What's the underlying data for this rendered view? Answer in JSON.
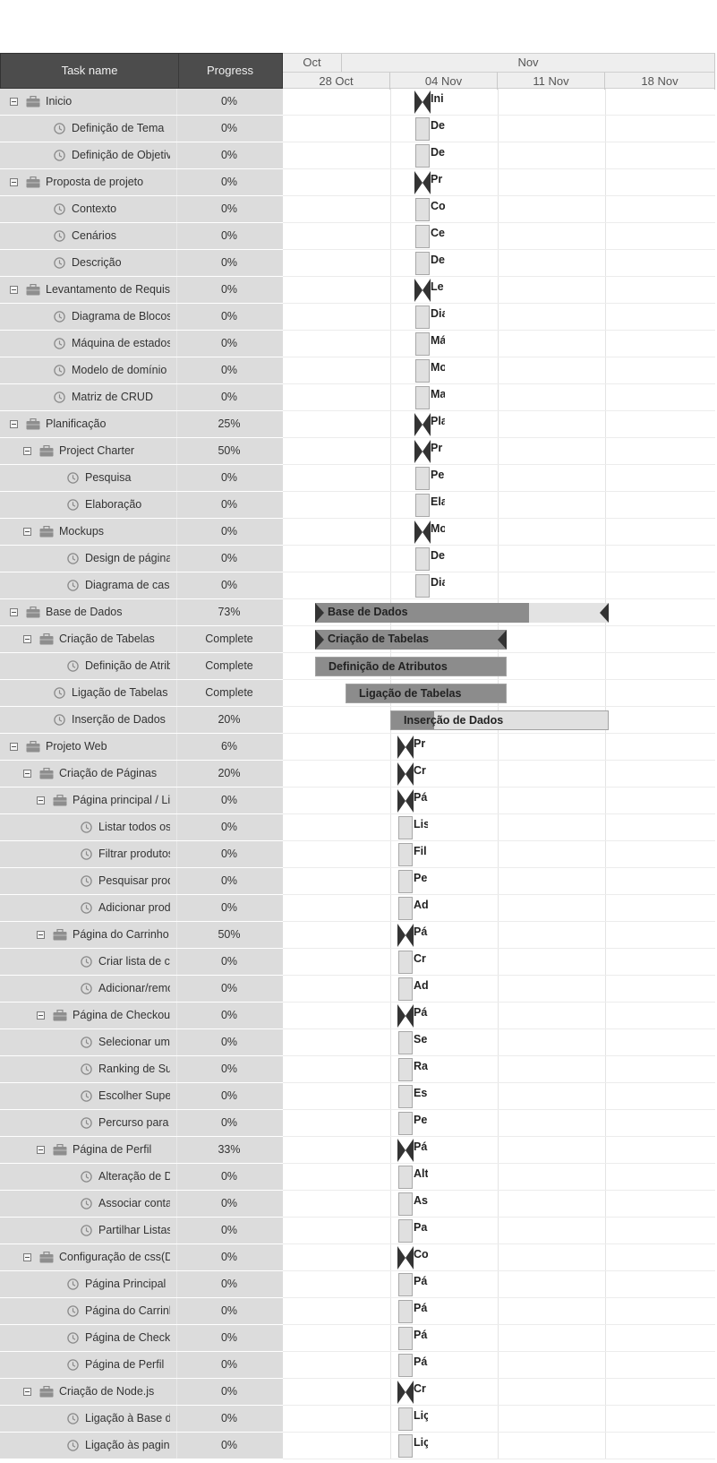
{
  "header": {
    "task_name_label": "Task name",
    "progress_label": "Progress"
  },
  "scale": {
    "months": [
      {
        "label": "Oct"
      },
      {
        "label": "Nov"
      }
    ],
    "weeks": [
      {
        "label": "28 Oct"
      },
      {
        "label": "04 Nov"
      },
      {
        "label": "11 Nov"
      },
      {
        "label": "18 Nov"
      }
    ]
  },
  "colors": {
    "header_bg": "#4c4c4c",
    "row_bg": "#dcdcdc",
    "bar_fill": "#8c8c8c",
    "bar_bg": "#e0e0e0",
    "milestone": "#333333"
  },
  "tasks": [
    {
      "name": "Inicio",
      "progress": "0%",
      "type": "project",
      "level": 0,
      "short_label": "Ini"
    },
    {
      "name": "Definição de Tema",
      "progress": "0%",
      "type": "task",
      "level": 1,
      "short_label": "De"
    },
    {
      "name": "Definição de Objetivos",
      "progress": "0%",
      "type": "task",
      "level": 1,
      "short_label": "De"
    },
    {
      "name": "Proposta de projeto",
      "progress": "0%",
      "type": "project",
      "level": 0,
      "short_label": "Pr"
    },
    {
      "name": "Contexto",
      "progress": "0%",
      "type": "task",
      "level": 1,
      "short_label": "Co"
    },
    {
      "name": "Cenários",
      "progress": "0%",
      "type": "task",
      "level": 1,
      "short_label": "Ce"
    },
    {
      "name": "Descrição",
      "progress": "0%",
      "type": "task",
      "level": 1,
      "short_label": "De"
    },
    {
      "name": "Levantamento de Requisi",
      "progress": "0%",
      "type": "project",
      "level": 0,
      "short_label": "Le"
    },
    {
      "name": "Diagrama de Blocos",
      "progress": "0%",
      "type": "task",
      "level": 1,
      "short_label": "Dia"
    },
    {
      "name": "Máquina de estados",
      "progress": "0%",
      "type": "task",
      "level": 1,
      "short_label": "Má"
    },
    {
      "name": "Modelo de domínio",
      "progress": "0%",
      "type": "task",
      "level": 1,
      "short_label": "Mo"
    },
    {
      "name": "Matriz de CRUD",
      "progress": "0%",
      "type": "task",
      "level": 1,
      "short_label": "Ma"
    },
    {
      "name": "Planificação",
      "progress": "25%",
      "type": "project",
      "level": 0,
      "short_label": "Pla"
    },
    {
      "name": "Project Charter",
      "progress": "50%",
      "type": "project",
      "level": 1,
      "short_label": "Pr"
    },
    {
      "name": "Pesquisa",
      "progress": "0%",
      "type": "task",
      "level": 2,
      "short_label": "Pe"
    },
    {
      "name": "Elaboração",
      "progress": "0%",
      "type": "task",
      "level": 2,
      "short_label": "Ela"
    },
    {
      "name": "Mockups",
      "progress": "0%",
      "type": "project",
      "level": 1,
      "short_label": "Mo"
    },
    {
      "name": "Design de páginas",
      "progress": "0%",
      "type": "task",
      "level": 2,
      "short_label": "De"
    },
    {
      "name": "Diagrama de casos",
      "progress": "0%",
      "type": "task",
      "level": 2,
      "short_label": "Dia"
    },
    {
      "name": "Base de Dados",
      "progress": "73%",
      "type": "project",
      "level": 0,
      "short_label": "",
      "bar_label": "Base de Dados"
    },
    {
      "name": "Criação de Tabelas",
      "progress": "Complete",
      "type": "project",
      "level": 1,
      "short_label": "",
      "bar_label": "Criação de Tabelas"
    },
    {
      "name": "Definição de Atribut",
      "progress": "Complete",
      "type": "task",
      "level": 2,
      "short_label": "",
      "bar_label": "Definição de Atributos"
    },
    {
      "name": "Ligação de Tabelas",
      "progress": "Complete",
      "type": "task",
      "level": 1,
      "short_label": "",
      "bar_label": "Ligação de Tabelas"
    },
    {
      "name": "Inserção de Dados",
      "progress": "20%",
      "type": "task",
      "level": 1,
      "short_label": "",
      "bar_label": "Inserção de Dados"
    },
    {
      "name": "Projeto Web",
      "progress": "6%",
      "type": "project",
      "level": 0,
      "short_label": "Pr"
    },
    {
      "name": "Criação de Páginas",
      "progress": "20%",
      "type": "project",
      "level": 1,
      "short_label": "Cr"
    },
    {
      "name": "Página principal / Li",
      "progress": "0%",
      "type": "project",
      "level": 2,
      "short_label": "Pá"
    },
    {
      "name": "Listar todos os pı",
      "progress": "0%",
      "type": "task",
      "level": 3,
      "short_label": "Lis"
    },
    {
      "name": "Filtrar produtos",
      "progress": "0%",
      "type": "task",
      "level": 3,
      "short_label": "Fil"
    },
    {
      "name": "Pesquisar produt",
      "progress": "0%",
      "type": "task",
      "level": 3,
      "short_label": "Pe"
    },
    {
      "name": "Adicionar produtc",
      "progress": "0%",
      "type": "task",
      "level": 3,
      "short_label": "Ad"
    },
    {
      "name": "Página do Carrinho",
      "progress": "50%",
      "type": "project",
      "level": 2,
      "short_label": "Pá"
    },
    {
      "name": "Criar lista de com",
      "progress": "0%",
      "type": "task",
      "level": 3,
      "short_label": "Cr"
    },
    {
      "name": "Adicionar/remove",
      "progress": "0%",
      "type": "task",
      "level": 3,
      "short_label": "Ad"
    },
    {
      "name": "Página de Checkou",
      "progress": "0%",
      "type": "project",
      "level": 2,
      "short_label": "Pá"
    },
    {
      "name": "Selecionar um ra",
      "progress": "0%",
      "type": "task",
      "level": 3,
      "short_label": "Se"
    },
    {
      "name": "Ranking de Supe",
      "progress": "0%",
      "type": "task",
      "level": 3,
      "short_label": "Ra"
    },
    {
      "name": "Escolher Superm",
      "progress": "0%",
      "type": "task",
      "level": 3,
      "short_label": "Es"
    },
    {
      "name": "Percurso para o S",
      "progress": "0%",
      "type": "task",
      "level": 3,
      "short_label": "Pe"
    },
    {
      "name": "Página de Perfil",
      "progress": "33%",
      "type": "project",
      "level": 2,
      "short_label": "Pá"
    },
    {
      "name": "Alteração de Dad",
      "progress": "0%",
      "type": "task",
      "level": 3,
      "short_label": "Alt"
    },
    {
      "name": "Associar contas",
      "progress": "0%",
      "type": "task",
      "level": 3,
      "short_label": "As"
    },
    {
      "name": "Partilhar Listas",
      "progress": "0%",
      "type": "task",
      "level": 3,
      "short_label": "Pa"
    },
    {
      "name": "Configuração de css(D",
      "progress": "0%",
      "type": "project",
      "level": 1,
      "short_label": "Co"
    },
    {
      "name": "Página Principal",
      "progress": "0%",
      "type": "task",
      "level": 2,
      "short_label": "Pá"
    },
    {
      "name": "Página do Carrinho",
      "progress": "0%",
      "type": "task",
      "level": 2,
      "short_label": "Pá"
    },
    {
      "name": "Página de Checkou",
      "progress": "0%",
      "type": "task",
      "level": 2,
      "short_label": "Pá"
    },
    {
      "name": "Página de Perfil",
      "progress": "0%",
      "type": "task",
      "level": 2,
      "short_label": "Pá"
    },
    {
      "name": "Criação de Node.js",
      "progress": "0%",
      "type": "project",
      "level": 1,
      "short_label": "Cr"
    },
    {
      "name": "Ligação à Base de I",
      "progress": "0%",
      "type": "task",
      "level": 2,
      "short_label": "Liç"
    },
    {
      "name": "Ligação às paginas",
      "progress": "0%",
      "type": "task",
      "level": 2,
      "short_label": "Liç"
    }
  ]
}
